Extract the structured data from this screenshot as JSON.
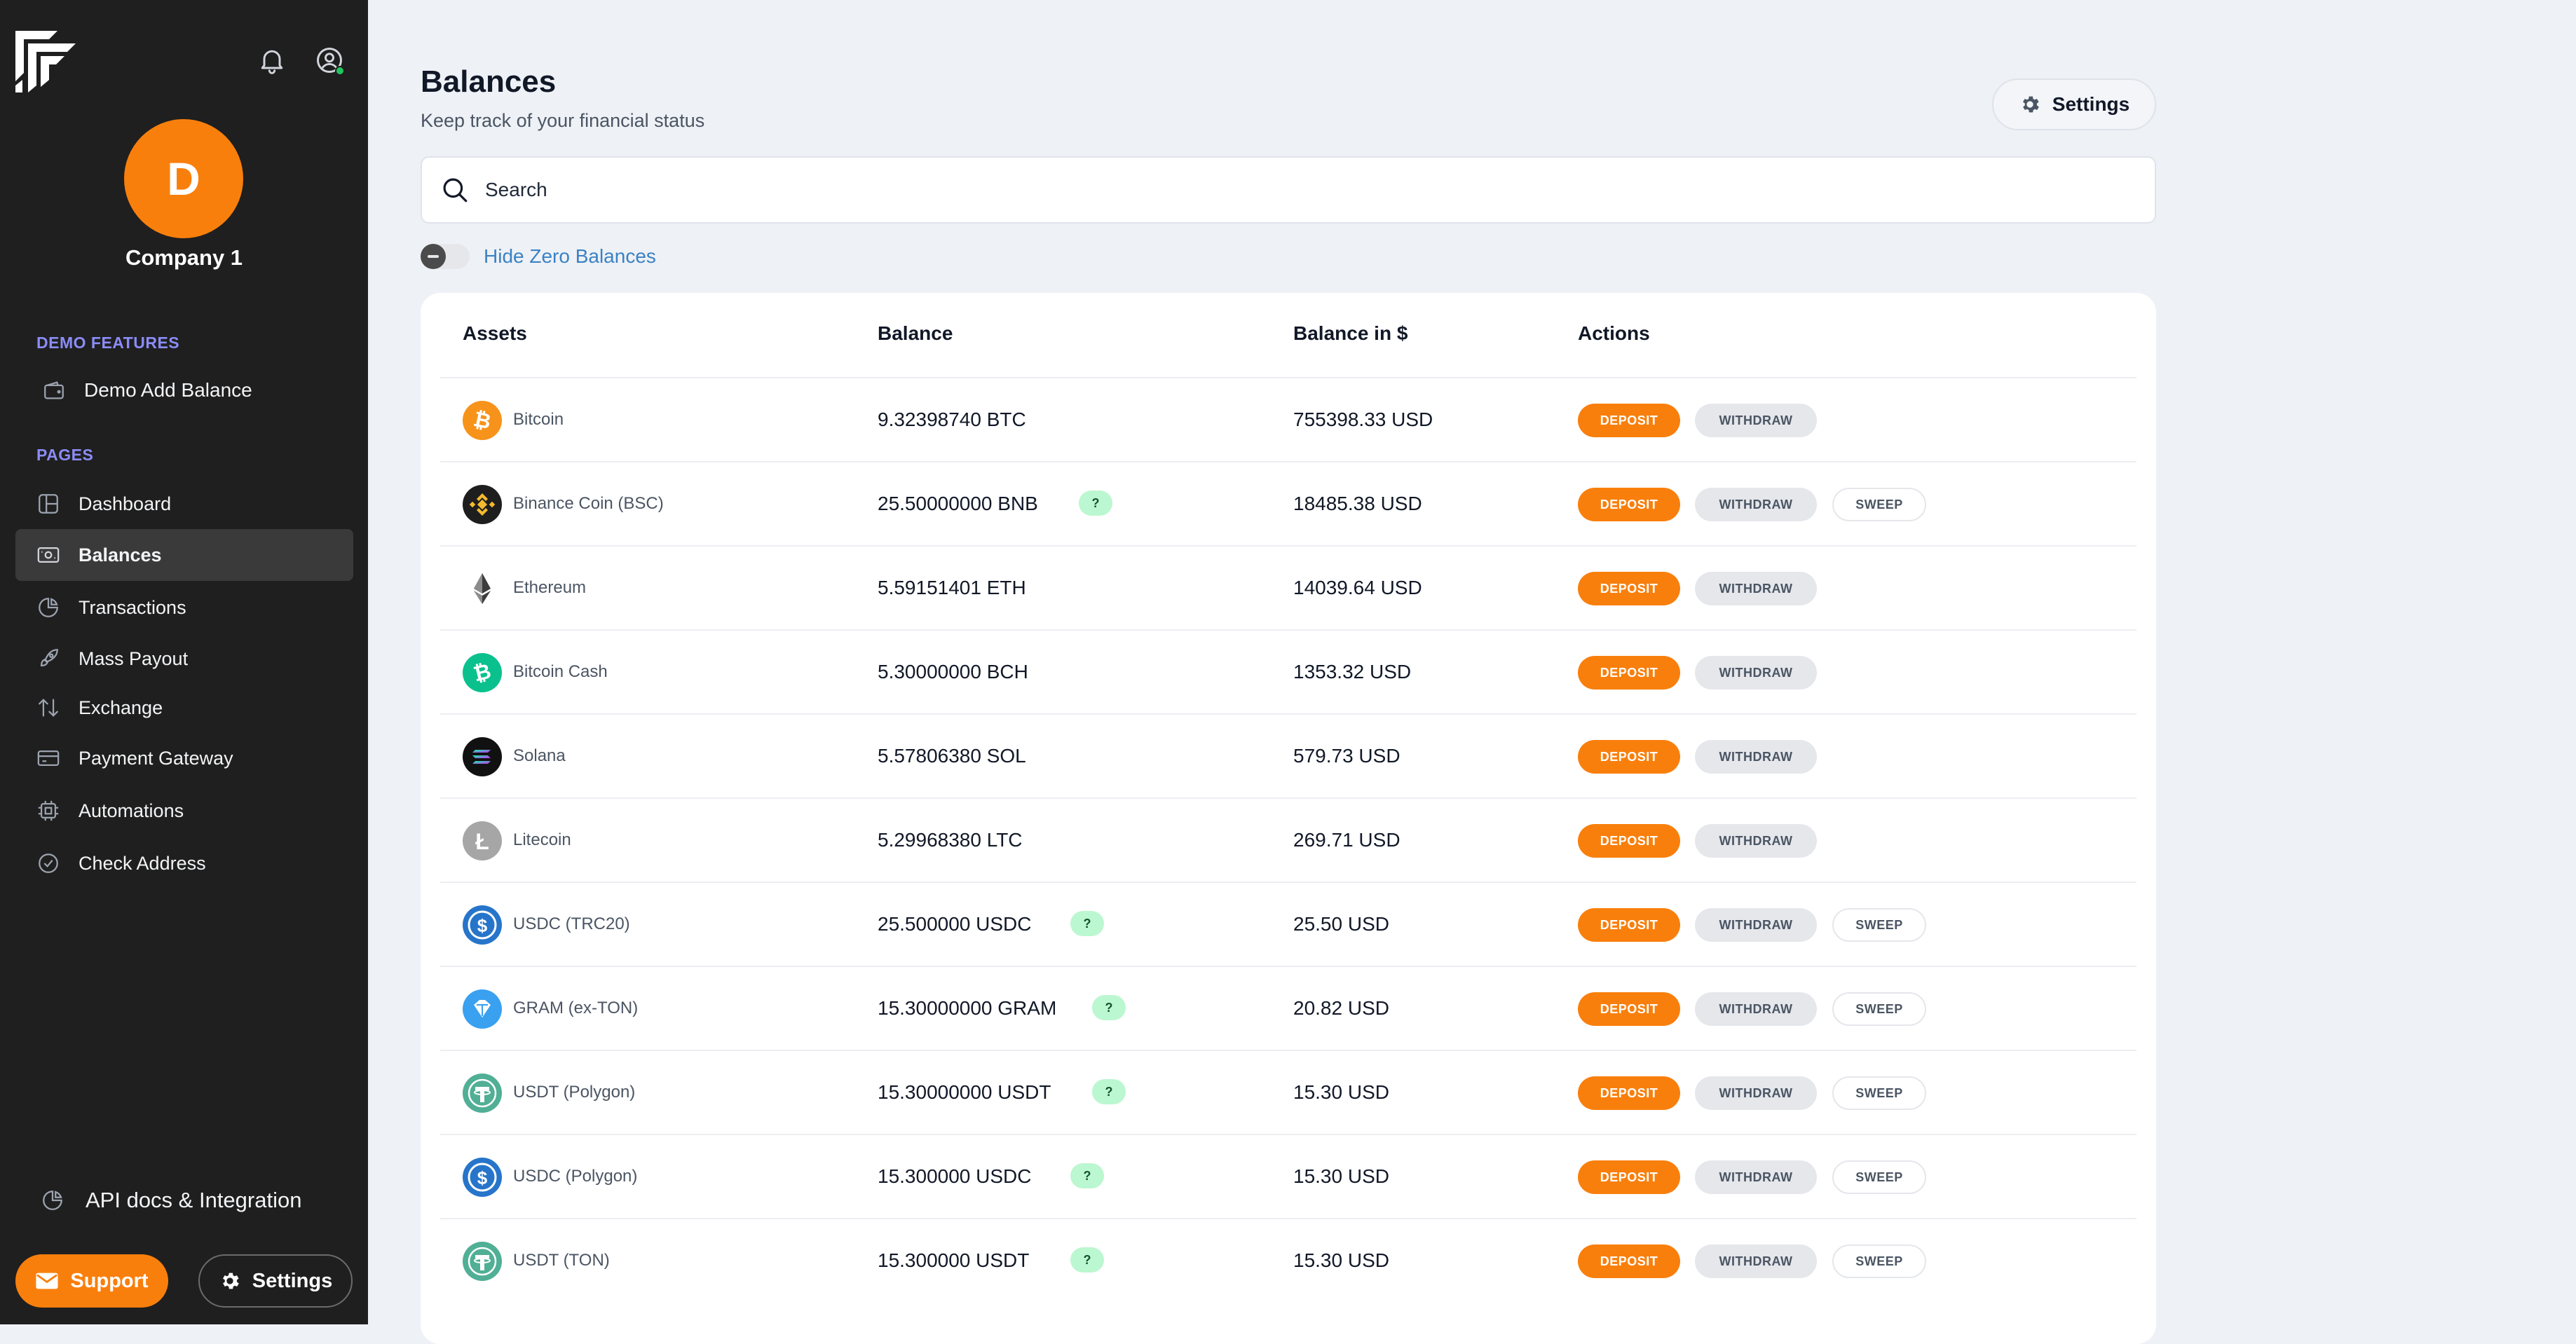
{
  "sidebar": {
    "company_initial": "D",
    "company_name": "Company 1",
    "demo_section_title": "DEMO FEATURES",
    "demo_items": [
      {
        "label": "Demo Add Balance",
        "icon": "wallet-icon"
      }
    ],
    "pages_section_title": "PAGES",
    "items": [
      {
        "label": "Dashboard",
        "icon": "dashboard-icon",
        "active": false
      },
      {
        "label": "Balances",
        "icon": "balances-icon",
        "active": true
      },
      {
        "label": "Transactions",
        "icon": "transactions-icon",
        "active": false
      },
      {
        "label": "Mass Payout",
        "icon": "rocket-icon",
        "active": false
      },
      {
        "label": "Exchange",
        "icon": "exchange-icon",
        "active": false
      },
      {
        "label": "Payment Gateway",
        "icon": "card-icon",
        "active": false
      },
      {
        "label": "Automations",
        "icon": "chip-icon",
        "active": false
      },
      {
        "label": "Check Address",
        "icon": "check-circle-icon",
        "active": false
      }
    ],
    "api_docs_label": "API docs & Integration",
    "support_label": "Support",
    "settings_label": "Settings"
  },
  "header": {
    "title": "Balances",
    "subtitle": "Keep track of your financial status",
    "settings_label": "Settings"
  },
  "search": {
    "placeholder": "Search",
    "value": ""
  },
  "filters": {
    "hide_zero_label": "Hide Zero Balances",
    "hide_zero_enabled": false
  },
  "table": {
    "columns": [
      "Assets",
      "Balance",
      "Balance in $",
      "Actions"
    ],
    "action_labels": {
      "deposit": "DEPOSIT",
      "withdraw": "WITHDRAW",
      "sweep": "SWEEP"
    },
    "help_badge": "?",
    "rows": [
      {
        "asset": "Bitcoin",
        "balance": "9.32398740 BTC",
        "usd": "755398.33 USD",
        "help": false,
        "sweep": false,
        "icon": "bitcoin-icon",
        "color": "#f7931a"
      },
      {
        "asset": "Binance Coin (BSC)",
        "balance": "25.50000000 BNB",
        "usd": "18485.38 USD",
        "help": true,
        "sweep": true,
        "icon": "bnb-icon",
        "color": "#1e1e1e"
      },
      {
        "asset": "Ethereum",
        "balance": "5.59151401 ETH",
        "usd": "14039.64 USD",
        "help": false,
        "sweep": false,
        "icon": "ethereum-icon",
        "color": "#ffffff"
      },
      {
        "asset": "Bitcoin Cash",
        "balance": "5.30000000 BCH",
        "usd": "1353.32 USD",
        "help": false,
        "sweep": false,
        "icon": "bitcoin-cash-icon",
        "color": "#0ac18e"
      },
      {
        "asset": "Solana",
        "balance": "5.57806380 SOL",
        "usd": "579.73 USD",
        "help": false,
        "sweep": false,
        "icon": "solana-icon",
        "color": "#111111"
      },
      {
        "asset": "Litecoin",
        "balance": "5.29968380 LTC",
        "usd": "269.71 USD",
        "help": false,
        "sweep": false,
        "icon": "litecoin-icon",
        "color": "#a6a6a6"
      },
      {
        "asset": "USDC (TRC20)",
        "balance": "25.500000 USDC",
        "usd": "25.50 USD",
        "help": true,
        "sweep": true,
        "icon": "usdc-icon",
        "color": "#2775ca"
      },
      {
        "asset": "GRAM (ex-TON)",
        "balance": "15.30000000 GRAM",
        "usd": "20.82 USD",
        "help": true,
        "sweep": true,
        "icon": "gram-icon",
        "color": "#3aa0f0"
      },
      {
        "asset": "USDT (Polygon)",
        "balance": "15.30000000 USDT",
        "usd": "15.30 USD",
        "help": true,
        "sweep": true,
        "icon": "tether-icon",
        "color": "#50af95"
      },
      {
        "asset": "USDC (Polygon)",
        "balance": "15.300000 USDC",
        "usd": "15.30 USD",
        "help": true,
        "sweep": true,
        "icon": "usdc-icon",
        "color": "#2775ca"
      },
      {
        "asset": "USDT (TON)",
        "balance": "15.300000 USDT",
        "usd": "15.30 USD",
        "help": true,
        "sweep": true,
        "icon": "tether-icon",
        "color": "#50af95"
      }
    ]
  },
  "colors": {
    "accent": "#f97f0c",
    "sidebar_bg": "#1f1f1f",
    "section_title": "#8b8cf6"
  }
}
